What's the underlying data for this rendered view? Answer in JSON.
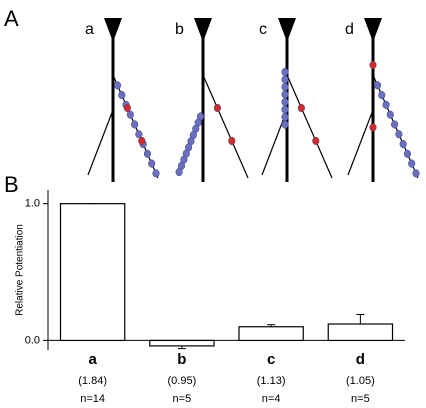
{
  "panel_a": {
    "label": "A",
    "neurons": [
      "a",
      "b",
      "c",
      "d"
    ]
  },
  "chart_data": {
    "type": "bar",
    "panel_label": "B",
    "ylabel": "Relative Potentiation",
    "categories": [
      "a",
      "b",
      "c",
      "d"
    ],
    "values": [
      1.0,
      -0.04,
      0.1,
      0.12
    ],
    "errors": [
      0,
      0.02,
      0.015,
      0.07
    ],
    "category_notes": [
      "(1.84)",
      "(0.95)",
      "(1.13)",
      "(1.05)"
    ],
    "category_counts": [
      "n=14",
      "n=5",
      "n=4",
      "n=5"
    ],
    "color": "#ffffff",
    "ylim": [
      -0.07,
      1.1
    ],
    "yticks": [
      {
        "value": 0,
        "label": "0.0"
      },
      {
        "value": 1,
        "label": "1.0"
      }
    ]
  }
}
